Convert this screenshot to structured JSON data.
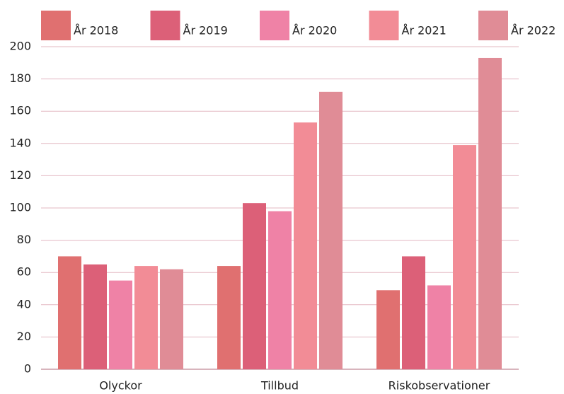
{
  "chart_data": {
    "type": "bar",
    "categories": [
      "Olyckor",
      "Tillbud",
      "Riskobservationer"
    ],
    "series": [
      {
        "name": "År 2018",
        "color": "#e07070",
        "values": [
          70,
          64,
          49
        ]
      },
      {
        "name": "År 2019",
        "color": "#dc6078",
        "values": [
          65,
          103,
          70
        ]
      },
      {
        "name": "År 2020",
        "color": "#ef82a6",
        "values": [
          55,
          98,
          52
        ]
      },
      {
        "name": "År 2021",
        "color": "#f28c96",
        "values": [
          64,
          153,
          139
        ]
      },
      {
        "name": "År 2022",
        "color": "#e08c96",
        "values": [
          62,
          172,
          193
        ]
      }
    ],
    "ylim": [
      0,
      200
    ],
    "yticks": [
      0,
      20,
      40,
      60,
      80,
      100,
      120,
      140,
      160,
      180,
      200
    ],
    "grid": true,
    "legend": "top"
  }
}
